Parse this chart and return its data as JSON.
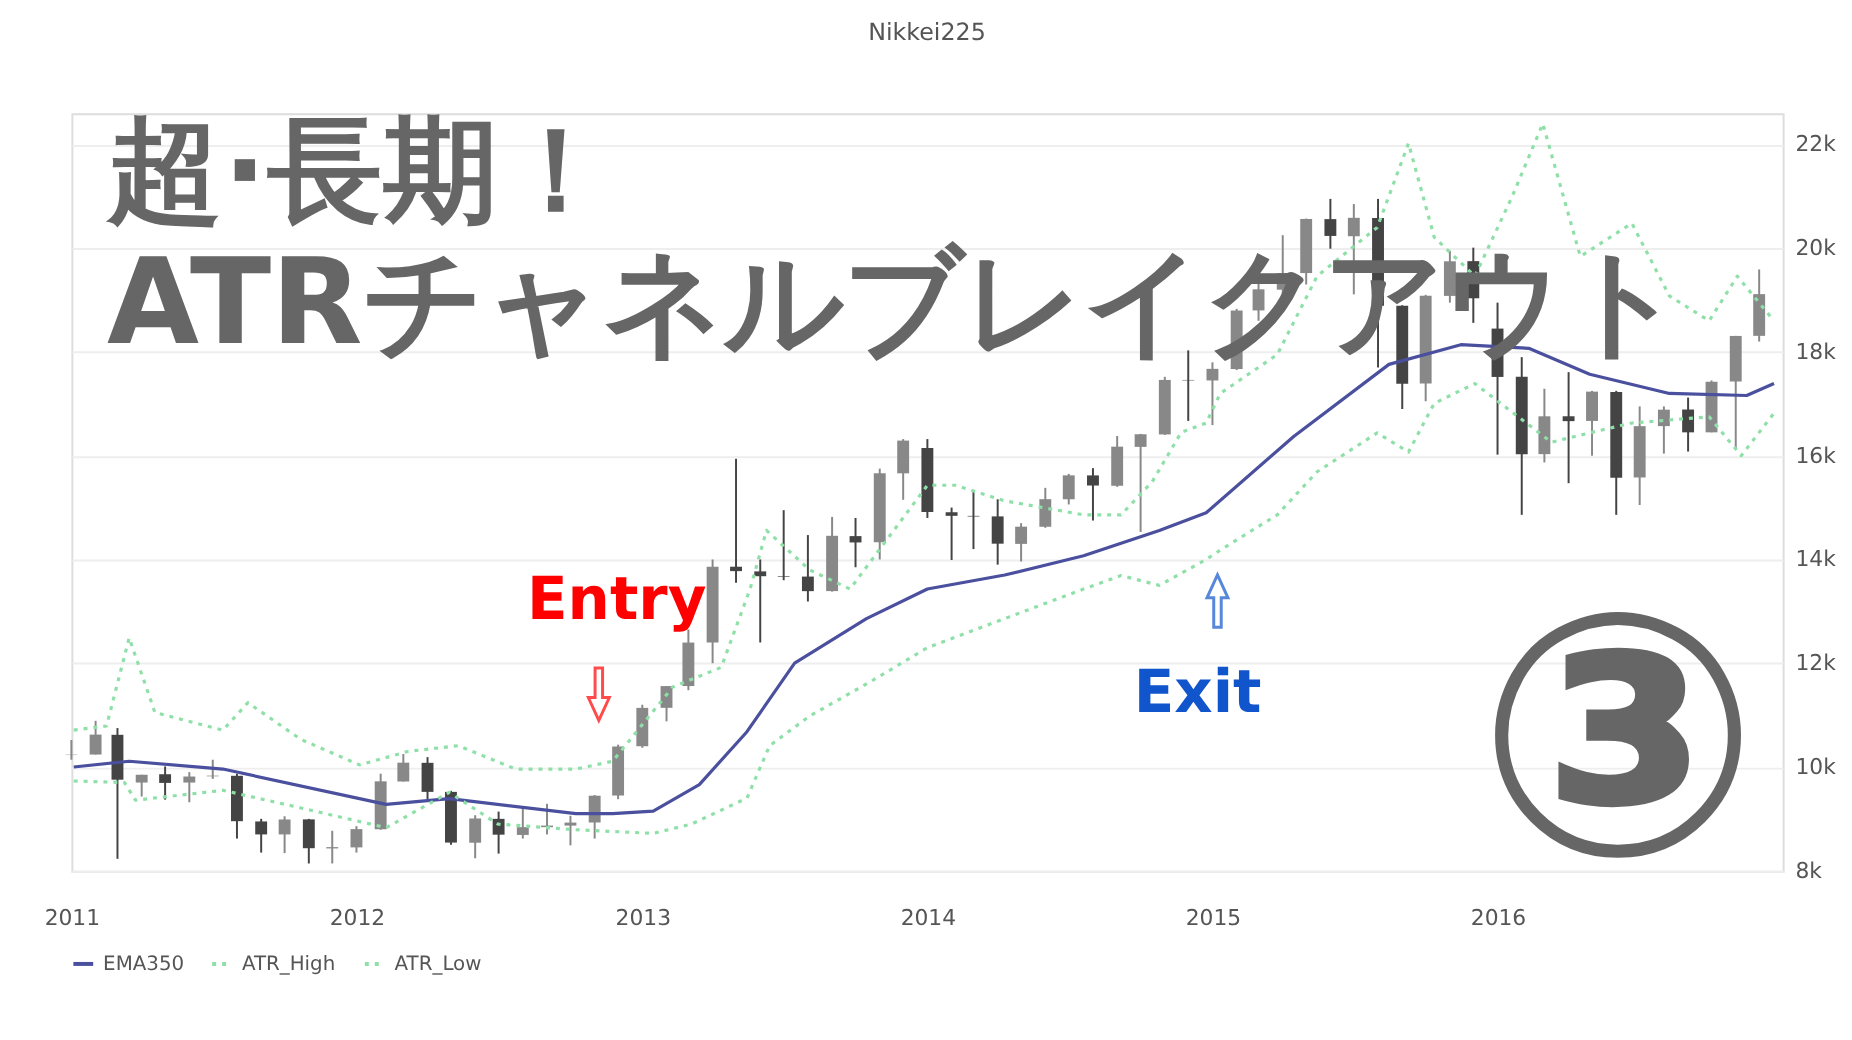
{
  "chart_data": {
    "type": "candlestick",
    "title": "Nikkei225",
    "x": [
      "2011-01",
      "2011-02",
      "2011-03",
      "2011-04",
      "2011-05",
      "2011-06",
      "2011-07",
      "2011-08",
      "2011-09",
      "2011-10",
      "2011-11",
      "2011-12",
      "2012-01",
      "2012-02",
      "2012-03",
      "2012-04",
      "2012-05",
      "2012-06",
      "2012-07",
      "2012-08",
      "2012-09",
      "2012-10",
      "2012-11",
      "2012-12",
      "2013-01",
      "2013-02",
      "2013-03",
      "2013-04",
      "2013-05",
      "2013-06",
      "2013-07",
      "2013-08",
      "2013-09",
      "2013-10",
      "2013-11",
      "2013-12",
      "2014-01",
      "2014-02",
      "2014-03",
      "2014-04",
      "2014-05",
      "2014-06",
      "2014-07",
      "2014-08",
      "2014-09",
      "2014-10",
      "2014-11",
      "2014-12",
      "2015-01",
      "2015-02",
      "2015-03",
      "2015-04",
      "2015-05",
      "2015-06",
      "2015-07",
      "2015-08",
      "2015-09",
      "2015-10",
      "2015-11",
      "2015-12",
      "2016-01",
      "2016-02",
      "2016-03",
      "2016-04",
      "2016-05",
      "2016-06",
      "2016-07",
      "2016-08",
      "2016-09",
      "2016-10",
      "2016-11",
      "2016-12"
    ],
    "ohlc": [
      [
        10230,
        10520,
        10140,
        10237
      ],
      [
        10240,
        10890,
        10240,
        10624
      ],
      [
        10620,
        10750,
        8230,
        9755
      ],
      [
        9700,
        9850,
        9430,
        9850
      ],
      [
        9860,
        10010,
        9370,
        9693
      ],
      [
        9700,
        9900,
        9320,
        9816
      ],
      [
        9820,
        10140,
        9770,
        9833
      ],
      [
        9830,
        9870,
        8620,
        8955
      ],
      [
        8950,
        9000,
        8350,
        8700
      ],
      [
        8700,
        9050,
        8340,
        8988
      ],
      [
        8990,
        9000,
        8140,
        8434
      ],
      [
        8430,
        8770,
        8140,
        8455
      ],
      [
        8450,
        8860,
        8350,
        8802
      ],
      [
        8800,
        9870,
        8790,
        9723
      ],
      [
        9720,
        10250,
        9720,
        10083
      ],
      [
        10080,
        10190,
        9380,
        9520
      ],
      [
        9520,
        9540,
        8500,
        8543
      ],
      [
        8540,
        9070,
        8240,
        9007
      ],
      [
        9000,
        9140,
        8330,
        8695
      ],
      [
        8690,
        9220,
        8620,
        8840
      ],
      [
        8840,
        9290,
        8700,
        8870
      ],
      [
        8870,
        9060,
        8490,
        8928
      ],
      [
        8930,
        9460,
        8620,
        9446
      ],
      [
        9450,
        10430,
        9380,
        10395
      ],
      [
        10400,
        11200,
        10370,
        11139
      ],
      [
        11140,
        11560,
        10880,
        11559
      ],
      [
        11560,
        12650,
        11480,
        12398
      ],
      [
        12400,
        14000,
        12000,
        13860
      ],
      [
        13860,
        15940,
        13550,
        13775
      ],
      [
        13770,
        14000,
        12400,
        13677
      ],
      [
        13680,
        14950,
        13600,
        13668
      ],
      [
        13670,
        14470,
        13190,
        13389
      ],
      [
        13390,
        14820,
        13380,
        14456
      ],
      [
        14450,
        14800,
        13850,
        14328
      ],
      [
        14330,
        15750,
        14000,
        15662
      ],
      [
        15660,
        16320,
        15150,
        16291
      ],
      [
        16150,
        16320,
        14800,
        14915
      ],
      [
        14910,
        15000,
        13990,
        14841
      ],
      [
        14840,
        15300,
        14200,
        14828
      ],
      [
        14830,
        15160,
        13900,
        14304
      ],
      [
        14300,
        14700,
        13960,
        14632
      ],
      [
        14630,
        15380,
        14610,
        15162
      ],
      [
        15160,
        15650,
        15060,
        15621
      ],
      [
        15620,
        15760,
        14750,
        15425
      ],
      [
        15420,
        16380,
        15400,
        16174
      ],
      [
        16170,
        16420,
        14530,
        16413
      ],
      [
        16410,
        17520,
        16400,
        17460
      ],
      [
        17460,
        18030,
        16670,
        17451
      ],
      [
        17450,
        17800,
        16590,
        17674
      ],
      [
        17670,
        18830,
        17650,
        18798
      ],
      [
        18800,
        19780,
        18600,
        19207
      ],
      [
        19200,
        20250,
        19030,
        19520
      ],
      [
        19520,
        20570,
        19300,
        20563
      ],
      [
        20560,
        20950,
        19990,
        20236
      ],
      [
        20230,
        20850,
        19110,
        20585
      ],
      [
        20580,
        20950,
        17700,
        18890
      ],
      [
        18890,
        18900,
        16900,
        17388
      ],
      [
        17390,
        19100,
        17050,
        19083
      ],
      [
        19080,
        19950,
        18950,
        19747
      ],
      [
        19750,
        20010,
        18560,
        19034
      ],
      [
        18450,
        18950,
        16020,
        17518
      ],
      [
        17520,
        17900,
        14860,
        16027
      ],
      [
        16030,
        17290,
        15870,
        16759
      ],
      [
        16760,
        17610,
        15470,
        16666
      ],
      [
        16670,
        17250,
        16000,
        17235
      ],
      [
        17230,
        17250,
        14860,
        15576
      ],
      [
        15580,
        16950,
        15050,
        16569
      ],
      [
        16570,
        16950,
        16040,
        16887
      ],
      [
        16890,
        17120,
        16080,
        16450
      ],
      [
        16450,
        17450,
        16450,
        17425
      ],
      [
        17430,
        18310,
        16110,
        18308
      ],
      [
        18310,
        19590,
        18200,
        19114
      ]
    ],
    "series": [
      {
        "name": "EMA350",
        "type": "line",
        "line_style": "solid",
        "color": "#4a4f9e",
        "x": [
          "2011-01-04",
          "2011-03-16",
          "2011-07-14",
          "2012-02-08",
          "2012-04-29",
          "2012-10-08",
          "2012-11-24",
          "2013-01-15",
          "2013-03-15",
          "2013-05-15",
          "2013-07-15",
          "2013-10-15",
          "2014-01-01",
          "2014-04-10",
          "2014-07-20",
          "2014-10-25",
          "2014-12-24",
          "2015-04-15",
          "2015-08-15",
          "2015-11-15",
          "2016-02-10",
          "2016-04-28",
          "2016-08-08",
          "2016-11-15",
          "2016-12-20"
        ],
        "values": [
          10000,
          10110,
          9960,
          9280,
          9390,
          9100,
          9100,
          9150,
          9660,
          10680,
          12000,
          12860,
          13430,
          13700,
          14070,
          14560,
          14900,
          16370,
          17760,
          18140,
          18070,
          17570,
          17200,
          17160,
          17390
        ]
      },
      {
        "name": "ATR_High",
        "type": "line",
        "line_style": "dotted",
        "color": "#8fe0a8",
        "x": [
          "2011-01-04",
          "2011-02-15",
          "2011-03-16",
          "2011-04-18",
          "2011-07-14",
          "2011-08-15",
          "2011-10-22",
          "2012-01-05",
          "2012-03-07",
          "2012-05-10",
          "2012-07-23",
          "2012-10-08",
          "2012-11-24",
          "2013-02-09",
          "2013-04-12",
          "2013-05-19",
          "2013-06-09",
          "2013-08-03",
          "2013-09-24",
          "2014-01-01",
          "2014-02-06",
          "2014-04-10",
          "2014-07-20",
          "2014-09-06",
          "2014-10-16",
          "2014-11-22",
          "2014-12-24",
          "2015-01-11",
          "2015-03-25",
          "2015-05-15",
          "2015-07-31",
          "2015-09-09",
          "2015-10-12",
          "2015-12-03",
          "2016-01-19",
          "2016-02-28",
          "2016-04-16",
          "2016-06-21",
          "2016-08-08",
          "2016-09-28",
          "2016-11-03",
          "2016-12-20"
        ],
        "values": [
          10710,
          10790,
          12490,
          11050,
          10710,
          11240,
          10530,
          10040,
          10300,
          10410,
          9960,
          9960,
          10110,
          11540,
          11920,
          13430,
          14560,
          13800,
          13430,
          15430,
          15430,
          15130,
          14860,
          14860,
          15500,
          16450,
          16630,
          17200,
          17950,
          19460,
          20400,
          22020,
          20210,
          19460,
          20970,
          22400,
          19840,
          20480,
          19080,
          18600,
          19460,
          18600
        ]
      },
      {
        "name": "ATR_Low",
        "type": "line",
        "line_style": "dotted",
        "color": "#8fe0a8",
        "x": [
          "2011-01-04",
          "2011-03-10",
          "2011-03-24",
          "2011-07-14",
          "2011-10-22",
          "2012-02-08",
          "2012-04-29",
          "2012-06-30",
          "2012-10-08",
          "2013-01-15",
          "2013-03-05",
          "2013-05-15",
          "2013-06-13",
          "2013-08-03",
          "2013-10-22",
          "2014-01-01",
          "2014-04-10",
          "2014-07-20",
          "2014-09-06",
          "2014-10-25",
          "2014-12-24",
          "2015-01-11",
          "2015-03-25",
          "2015-05-15",
          "2015-07-31",
          "2015-09-09",
          "2015-10-12",
          "2015-12-03",
          "2016-03-10",
          "2016-04-28",
          "2016-06-21",
          "2016-09-28",
          "2016-11-08",
          "2016-12-20"
        ],
        "values": [
          9730,
          9700,
          9360,
          9550,
          9210,
          8830,
          9510,
          8900,
          8790,
          8720,
          8900,
          9400,
          10410,
          10980,
          11660,
          12300,
          12860,
          13430,
          13690,
          13500,
          14000,
          14180,
          14860,
          15690,
          16440,
          16070,
          17010,
          17390,
          16260,
          16440,
          16630,
          16750,
          16000,
          16820
        ]
      }
    ],
    "xlim": [
      "2011-01-01",
      "2016-12-31"
    ],
    "xticks": [
      "2011",
      "2012",
      "2013",
      "2014",
      "2015",
      "2016"
    ],
    "ylim": [
      8000,
      22600
    ],
    "yticks": [
      {
        "value": 8000,
        "label": "8k"
      },
      {
        "value": 10000,
        "label": "10k"
      },
      {
        "value": 12000,
        "label": "12k"
      },
      {
        "value": 14000,
        "label": "14k"
      },
      {
        "value": 16000,
        "label": "16k"
      },
      {
        "value": 18000,
        "label": "18k"
      },
      {
        "value": 20000,
        "label": "20k"
      },
      {
        "value": 22000,
        "label": "22k"
      }
    ],
    "grid": "y",
    "legend": "bottom left",
    "annotations": [
      "超·長期！",
      "ATRチャネルブレイクアウト",
      "Entry",
      "Exit",
      "③"
    ]
  }
}
